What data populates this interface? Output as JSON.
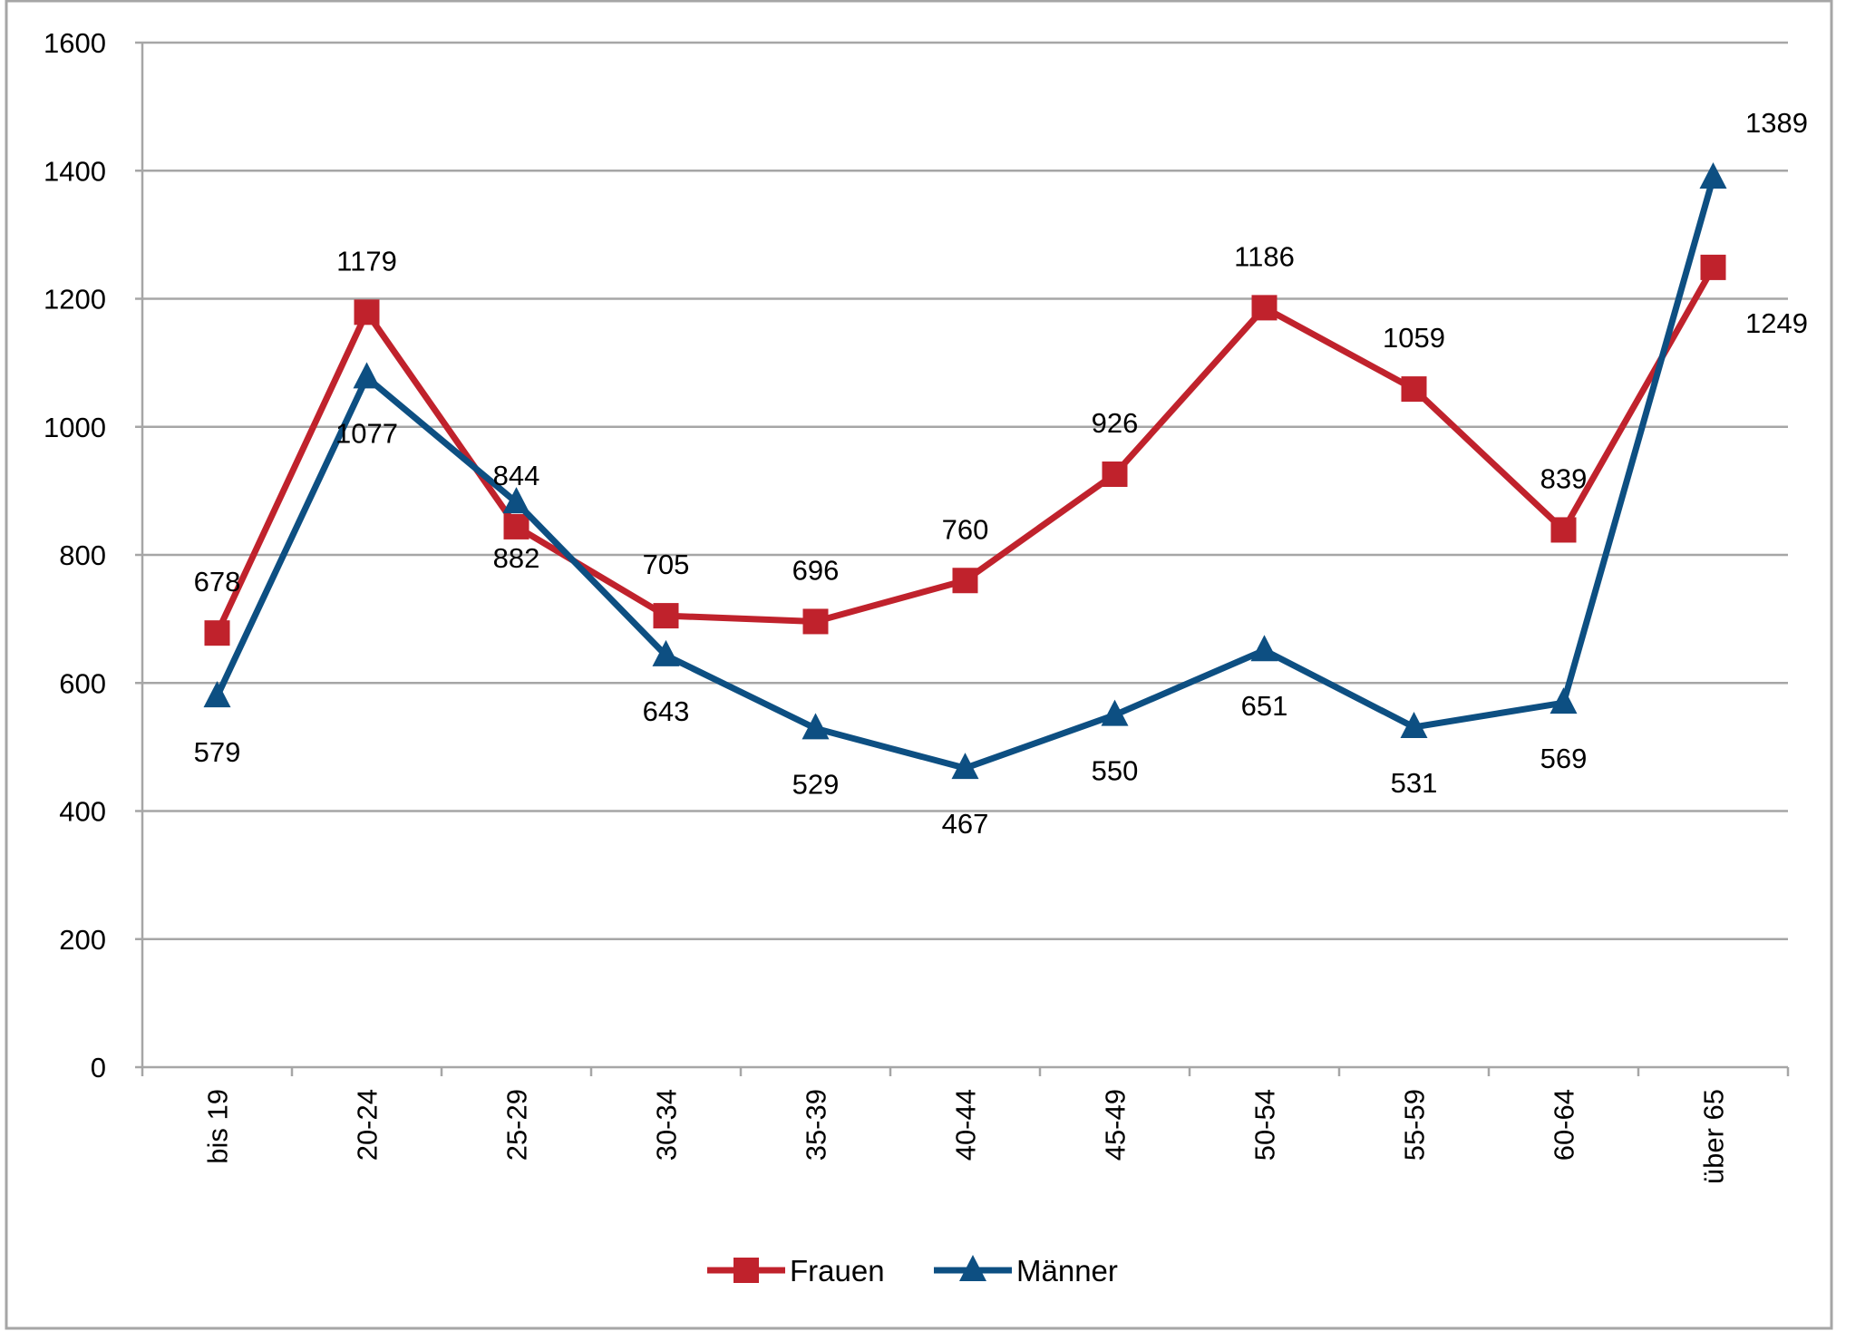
{
  "chart_data": {
    "type": "line",
    "title": "",
    "xlabel": "",
    "ylabel": "",
    "ylim": [
      0,
      1600
    ],
    "yticks": [
      0,
      200,
      400,
      600,
      800,
      1000,
      1200,
      1400,
      1600
    ],
    "grid": true,
    "legend_position": "bottom",
    "categories": [
      "bis 19",
      "20-24",
      "25-29",
      "30-34",
      "35-39",
      "40-44",
      "45-49",
      "50-54",
      "55-59",
      "60-64",
      "über 65"
    ],
    "series": [
      {
        "name": "Frauen",
        "marker": "square",
        "color": "#c0222c",
        "values": [
          678,
          1179,
          844,
          705,
          696,
          760,
          926,
          1186,
          1059,
          839,
          1249
        ]
      },
      {
        "name": "Männer",
        "marker": "triangle",
        "color": "#0d4f82",
        "values": [
          579,
          1077,
          882,
          643,
          529,
          467,
          550,
          651,
          531,
          569,
          1389
        ]
      }
    ]
  }
}
